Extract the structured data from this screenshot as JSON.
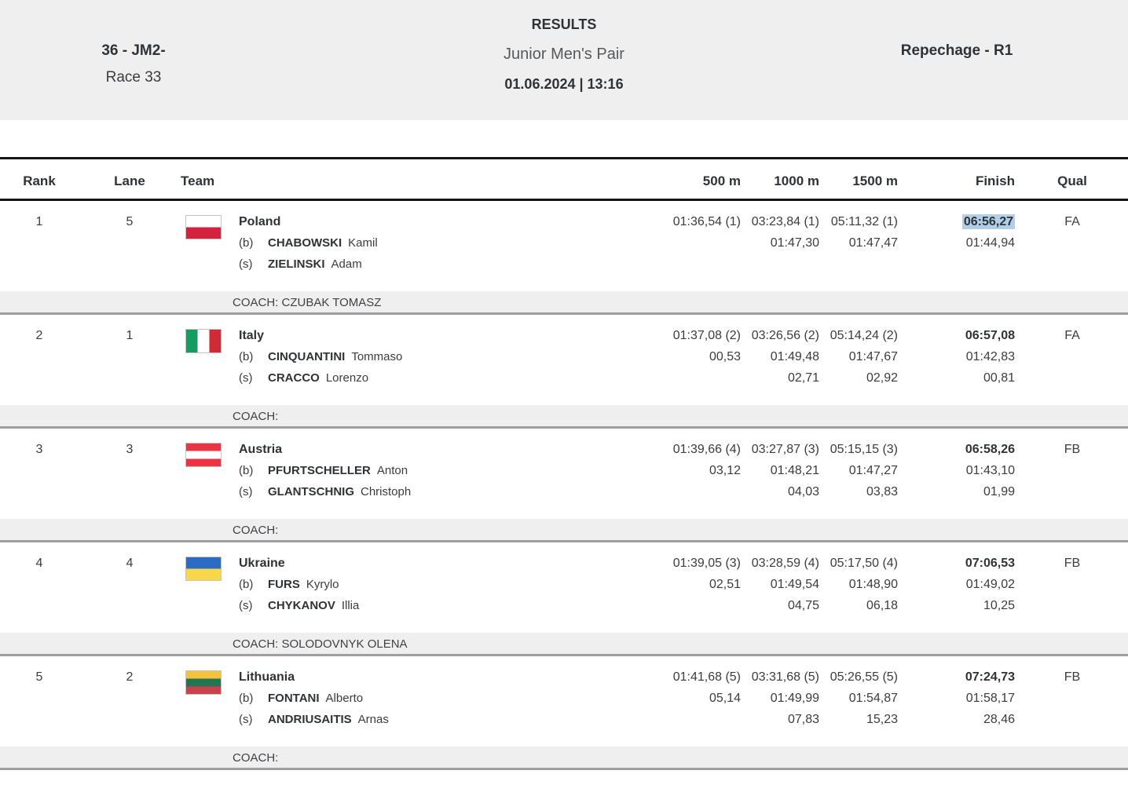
{
  "header": {
    "event_number": "36 - JM2-",
    "race": "Race 33",
    "title": "RESULTS",
    "event_name": "Junior Men's Pair",
    "datetime": "01.06.2024 | 13:16",
    "phase": "Repechage - R1"
  },
  "colors": {
    "band_background": "#efefef",
    "header_border": "#141414",
    "row_separator": "#9e9e9e",
    "selection_highlight": "#b1cfe7",
    "text_dark": "#2f3236",
    "text_body": "#3a3c3f"
  },
  "table": {
    "columns": [
      "Rank",
      "Lane",
      "Team",
      "500 m",
      "1000 m",
      "1500 m",
      "Finish",
      "Qual"
    ],
    "rows": [
      {
        "rank": "1",
        "lane": "5",
        "country": "Poland",
        "flag": {
          "orientation": "horizontal",
          "colors": [
            "#ffffff",
            "#d4213d"
          ]
        },
        "crew": [
          {
            "seat": "(b)",
            "last": "CHABOWSKI",
            "first": "Kamil"
          },
          {
            "seat": "(s)",
            "last": "ZIELINSKI",
            "first": "Adam"
          }
        ],
        "splits": {
          "m500": [
            "01:36,54 (1)",
            "",
            ""
          ],
          "m1000": [
            "03:23,84 (1)",
            "01:47,30",
            ""
          ],
          "m1500": [
            "05:11,32 (1)",
            "01:47,47",
            ""
          ],
          "finish": [
            "06:56,27",
            "01:44,94",
            ""
          ]
        },
        "finish_highlighted": true,
        "qual": "FA",
        "coach": "COACH: CZUBAK TOMASZ"
      },
      {
        "rank": "2",
        "lane": "1",
        "country": "Italy",
        "flag": {
          "orientation": "vertical",
          "colors": [
            "#169b62",
            "#ffffff",
            "#cf2b37"
          ]
        },
        "crew": [
          {
            "seat": "(b)",
            "last": "CINQUANTINI",
            "first": "Tommaso"
          },
          {
            "seat": "(s)",
            "last": "CRACCO",
            "first": "Lorenzo"
          }
        ],
        "splits": {
          "m500": [
            "01:37,08 (2)",
            "00,53",
            ""
          ],
          "m1000": [
            "03:26,56 (2)",
            "01:49,48",
            "02,71"
          ],
          "m1500": [
            "05:14,24 (2)",
            "01:47,67",
            "02,92"
          ],
          "finish": [
            "06:57,08",
            "01:42,83",
            "00,81"
          ]
        },
        "finish_highlighted": false,
        "qual": "FA",
        "coach": "COACH:"
      },
      {
        "rank": "3",
        "lane": "3",
        "country": "Austria",
        "flag": {
          "orientation": "horizontal",
          "colors": [
            "#ed3341",
            "#ffffff",
            "#ed3341"
          ]
        },
        "crew": [
          {
            "seat": "(b)",
            "last": "PFURTSCHELLER",
            "first": "Anton"
          },
          {
            "seat": "(s)",
            "last": "GLANTSCHNIG",
            "first": "Christoph"
          }
        ],
        "splits": {
          "m500": [
            "01:39,66 (4)",
            "03,12",
            ""
          ],
          "m1000": [
            "03:27,87 (3)",
            "01:48,21",
            "04,03"
          ],
          "m1500": [
            "05:15,15 (3)",
            "01:47,27",
            "03,83"
          ],
          "finish": [
            "06:58,26",
            "01:43,10",
            "01,99"
          ]
        },
        "finish_highlighted": false,
        "qual": "FB",
        "coach": "COACH:"
      },
      {
        "rank": "4",
        "lane": "4",
        "country": "Ukraine",
        "flag": {
          "orientation": "horizontal",
          "colors": [
            "#2b6bc4",
            "#f8d749"
          ]
        },
        "crew": [
          {
            "seat": "(b)",
            "last": "FURS",
            "first": "Kyrylo"
          },
          {
            "seat": "(s)",
            "last": "CHYKANOV",
            "first": "Illia"
          }
        ],
        "splits": {
          "m500": [
            "01:39,05 (3)",
            "02,51",
            ""
          ],
          "m1000": [
            "03:28,59 (4)",
            "01:49,54",
            "04,75"
          ],
          "m1500": [
            "05:17,50 (4)",
            "01:48,90",
            "06,18"
          ],
          "finish": [
            "07:06,53",
            "01:49,02",
            "10,25"
          ]
        },
        "finish_highlighted": false,
        "qual": "FB",
        "coach": "COACH: SOLODOVNYK OLENA"
      },
      {
        "rank": "5",
        "lane": "2",
        "country": "Lithuania",
        "flag": {
          "orientation": "horizontal",
          "colors": [
            "#f2c33b",
            "#247352",
            "#c8414b"
          ]
        },
        "crew": [
          {
            "seat": "(b)",
            "last": "FONTANI",
            "first": "Alberto"
          },
          {
            "seat": "(s)",
            "last": "ANDRIUSAITIS",
            "first": "Arnas"
          }
        ],
        "splits": {
          "m500": [
            "01:41,68 (5)",
            "05,14",
            ""
          ],
          "m1000": [
            "03:31,68 (5)",
            "01:49,99",
            "07,83"
          ],
          "m1500": [
            "05:26,55 (5)",
            "01:54,87",
            "15,23"
          ],
          "finish": [
            "07:24,73",
            "01:58,17",
            "28,46"
          ]
        },
        "finish_highlighted": false,
        "qual": "FB",
        "coach": "COACH:"
      }
    ]
  }
}
